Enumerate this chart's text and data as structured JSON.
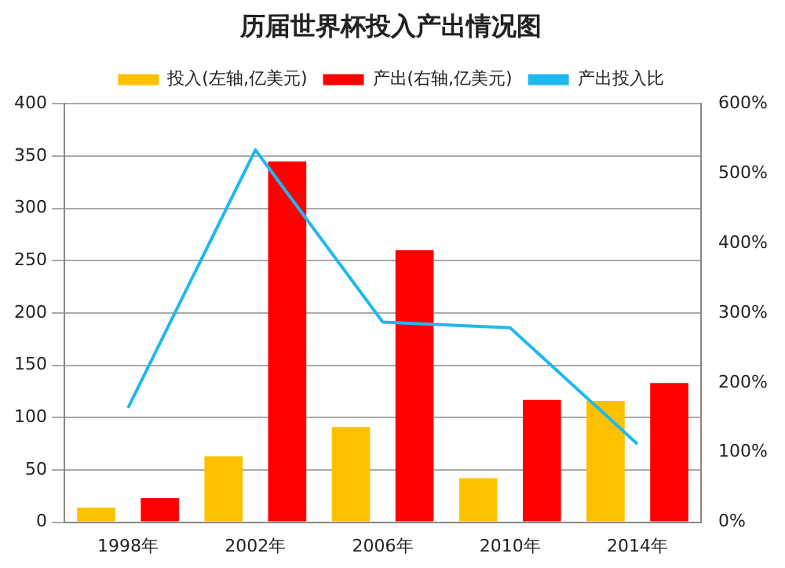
{
  "chart_data": {
    "type": "bar",
    "title": "历届世界杯投入产出情况图",
    "categories": [
      "1998年",
      "2002年",
      "2006年",
      "2010年",
      "2014年"
    ],
    "series": [
      {
        "name": "投入(左轴,亿美元)",
        "color": "#ffc000",
        "values": [
          14,
          63,
          91,
          42,
          116
        ]
      },
      {
        "name": "产出(右轴,亿美元)",
        "color": "#ff0000",
        "values": [
          23,
          345,
          260,
          117,
          133
        ]
      },
      {
        "name": "产出投入比",
        "type": "line",
        "axis": "y2",
        "color": "#1fb8f0",
        "values": [
          164,
          534,
          287,
          279,
          112
        ]
      }
    ],
    "ylim": [
      0,
      400
    ],
    "yticks": [
      0,
      50,
      100,
      150,
      200,
      250,
      300,
      350,
      400
    ],
    "y2lim": [
      0,
      600
    ],
    "y2ticks": [
      {
        "value": 0,
        "label": "0%"
      },
      {
        "value": 100,
        "label": "100%"
      },
      {
        "value": 200,
        "label": "200%"
      },
      {
        "value": 300,
        "label": "300%"
      },
      {
        "value": 400,
        "label": "400%"
      },
      {
        "value": 500,
        "label": "500%"
      },
      {
        "value": 600,
        "label": "600%"
      }
    ],
    "grid": "y",
    "legend": "top",
    "marker": "none"
  }
}
